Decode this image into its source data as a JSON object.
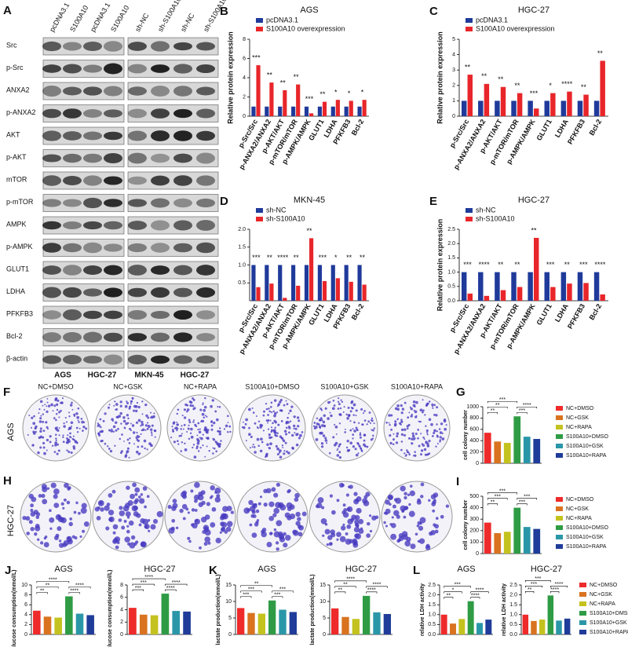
{
  "panel_a": {
    "panel": "A",
    "columns": [
      "pcDNA3.1",
      "S100A10",
      "pcDNA3.1",
      "S100A10",
      "sh-NC",
      "sh-S100A10",
      "sh-NC",
      "sh-S100A10"
    ],
    "rows": [
      "Src",
      "p-Src",
      "ANXA2",
      "p-ANXA2",
      "AKT",
      "p-AKT",
      "mTOR",
      "p-mTOR",
      "AMPK",
      "p-AMPK",
      "GLUT1",
      "LDHA",
      "PFKFB3",
      "Bcl-2",
      "β-actin"
    ],
    "groups": [
      "AGS",
      "HGC-27",
      "MKN-45",
      "HGC-27"
    ]
  },
  "panels_fh": {
    "panels": [
      "F",
      "H"
    ],
    "columns": [
      "NC+DMSO",
      "NC+GSK",
      "NC+RAPA",
      "S100A10+DMSO",
      "S100A10+GSK",
      "S100A10+RAPA"
    ],
    "rows": [
      "AGS",
      "HGC-27"
    ]
  },
  "chart_data": [
    {
      "type": "bar",
      "panel": "B",
      "title": "AGS",
      "ylabel": "Relative protein expression",
      "categories": [
        "p-Src/Src",
        "p-ANXA2/ANXA2",
        "p-AKT/AKT",
        "p-mTOR/mTOR",
        "p-AMPK/AMPK",
        "GLUT1",
        "LDHA",
        "PFKFB3",
        "Bcl-2"
      ],
      "series": [
        {
          "name": "pcDNA3.1",
          "color": "#1f3a9a",
          "values": [
            1,
            1,
            1,
            1,
            1,
            1,
            1,
            1,
            1
          ]
        },
        {
          "name": "S100A10 overexpression",
          "color": "#e8262a",
          "values": [
            5.3,
            3.5,
            2.7,
            3.3,
            0.3,
            1.5,
            1.7,
            1.6,
            1.7
          ]
        }
      ],
      "ylim": [
        0,
        8
      ],
      "yticks": [
        0,
        2,
        4,
        6,
        8
      ],
      "annotations": [
        "***",
        "**",
        "**",
        "**",
        "***",
        "**",
        "*",
        "*",
        "*"
      ]
    },
    {
      "type": "bar",
      "panel": "C",
      "title": "HGC-27",
      "ylabel": "Relative protein expression",
      "categories": [
        "p-Src/Src",
        "p-ANXA2/ANXA2",
        "p-AKT/AKT",
        "p-mTOR/mTOR",
        "p-AMPK/AMPK",
        "GLUT1",
        "LDHA",
        "PFKFB3",
        "Bcl-2"
      ],
      "series": [
        {
          "name": "pcDNA3.1",
          "color": "#1f3a9a",
          "values": [
            1,
            1,
            1,
            1,
            1,
            1,
            1,
            1,
            1
          ]
        },
        {
          "name": "S100A10 overexpression",
          "color": "#e8262a",
          "values": [
            2.7,
            2.1,
            1.9,
            1.5,
            0.5,
            1.5,
            1.6,
            1.4,
            3.6
          ]
        }
      ],
      "ylim": [
        0,
        5
      ],
      "yticks": [
        0,
        1,
        2,
        3,
        4,
        5
      ],
      "annotations": [
        "**",
        "**",
        "**",
        "**",
        "***",
        "*",
        "****",
        "**",
        "**"
      ]
    },
    {
      "type": "bar",
      "panel": "D",
      "title": "MKN-45",
      "categories": [
        "p-Src/Src",
        "p-ANXA2/ANXA2",
        "p-AKT/AKT",
        "p-mTOR/mTOR",
        "p-AMPK/AMPK",
        "GLUT1",
        "LDHA",
        "PFKFB3",
        "Bcl-2"
      ],
      "series": [
        {
          "name": "sh-NC",
          "color": "#1f3a9a",
          "values": [
            1,
            1,
            1,
            1,
            1,
            1,
            1,
            1,
            1
          ]
        },
        {
          "name": "sh-S100A10",
          "color": "#e8262a",
          "values": [
            0.38,
            0.48,
            0.08,
            0.42,
            1.75,
            0.55,
            0.63,
            0.53,
            0.45
          ]
        }
      ],
      "ylim": [
        0,
        2
      ],
      "yticks": [
        0.5,
        {
          "value": 1,
          "label": "1.0"
        },
        1.5,
        {
          "value": 2,
          "label": "2.0"
        }
      ],
      "annotations": [
        "***",
        "**",
        "****",
        "**",
        "**",
        "***",
        "*",
        "**",
        "**"
      ]
    },
    {
      "type": "bar",
      "panel": "E",
      "title": "HGC-27",
      "ylabel": "Relative protein expression",
      "categories": [
        "p-Src/Src",
        "p-ANXA2/ANXA2",
        "p-AKT/AKT",
        "p-mTOR/mTOR",
        "p-AMPK/AMPK",
        "GLUT1",
        "LDHA",
        "PFKFB3",
        "Bcl-2"
      ],
      "series": [
        {
          "name": "sh-NC",
          "color": "#1f3a9a",
          "values": [
            1,
            1,
            1,
            1,
            1,
            1,
            1,
            1,
            1
          ]
        },
        {
          "name": "sh-S100A10",
          "color": "#e8262a",
          "values": [
            0.25,
            0.17,
            0.37,
            0.48,
            2.2,
            0.48,
            0.6,
            0.62,
            0.22
          ]
        }
      ],
      "ylim": [
        0,
        2.5
      ],
      "yticks": [
        {
          "value": 0,
          "label": "0.0"
        },
        0.5,
        {
          "value": 1,
          "label": "1.0"
        },
        1.5,
        {
          "value": 2,
          "label": "2.0"
        },
        2.5
      ],
      "annotations": [
        "***",
        "****",
        "**",
        "**",
        "**",
        "***",
        "**",
        "***",
        "****"
      ]
    },
    {
      "type": "bar",
      "panel": "G",
      "ylabel": "cell colony number",
      "legend": true,
      "categories": [
        "NC+DMSO",
        "NC+GSK",
        "NC+RAPA",
        "S100A10+DMSO",
        "S100A10+GSK",
        "S100A10+RAPA"
      ],
      "colors": [
        "#ee2a2a",
        "#d9731f",
        "#c4c21e",
        "#2f9c45",
        "#2a97a8",
        "#1f3c9a"
      ],
      "values": [
        540,
        385,
        360,
        830,
        470,
        430
      ],
      "ylim": [
        0,
        1000
      ],
      "yticks": [
        0,
        200,
        400,
        600,
        800,
        1000
      ],
      "annotations": [
        "**",
        "**",
        "***",
        "***",
        "****"
      ]
    },
    {
      "type": "bar",
      "panel": "I",
      "ylabel": "cell colony number",
      "legend": true,
      "categories": [
        "NC+DMSO",
        "NC+GSK",
        "NC+RAPA",
        "S100A10+DMSO",
        "S100A10+GSK",
        "S100A10+RAPA"
      ],
      "colors": [
        "#ee2a2a",
        "#d9731f",
        "#c4c21e",
        "#2f9c45",
        "#2a97a8",
        "#1f3c9a"
      ],
      "values": [
        270,
        178,
        190,
        400,
        232,
        215
      ],
      "ylim": [
        0,
        500
      ],
      "yticks": [
        0,
        100,
        200,
        300,
        400,
        500
      ],
      "annotations": [
        "**",
        "***",
        "***",
        "***",
        "***"
      ]
    },
    {
      "type": "bar",
      "panel": "J",
      "title": "AGS",
      "ylabel": "glucose consumption(mmol/L)",
      "categories": [
        "NC+DMSO",
        "NC+GSK",
        "NC+RAPA",
        "S100A10+DMSO",
        "S100A10+GSK",
        "S100A10+RAPA"
      ],
      "colors": [
        "#ee2a2a",
        "#d9731f",
        "#c4c21e",
        "#2f9c45",
        "#2a97a8",
        "#1f3c9a"
      ],
      "values": [
        4.8,
        3.6,
        3.4,
        7.7,
        4.2,
        3.9
      ],
      "ylim": [
        0,
        10
      ],
      "yticks": [
        0,
        2,
        4,
        6,
        8,
        10
      ],
      "annotations": [
        "**",
        "**",
        "****",
        "****",
        "****"
      ]
    },
    {
      "type": "bar",
      "title": "HGC-27",
      "ylabel": "glucose consumption(mmol/L)",
      "categories": [
        "NC+DMSO",
        "NC+GSK",
        "NC+RAPA",
        "S100A10+DMSO",
        "S100A10+GSK",
        "S100A10+RAPA"
      ],
      "colors": [
        "#ee2a2a",
        "#d9731f",
        "#c4c21e",
        "#2f9c45",
        "#2a97a8",
        "#1f3c9a"
      ],
      "values": [
        4.3,
        3.2,
        3.1,
        6.6,
        3.8,
        3.7
      ],
      "ylim": [
        0,
        8
      ],
      "yticks": [
        0,
        2,
        4,
        6,
        8
      ],
      "annotations": [
        "***",
        "***",
        "****",
        "****",
        "****"
      ]
    },
    {
      "type": "bar",
      "panel": "K",
      "title": "AGS",
      "ylabel": "lactate production(mmol/L)",
      "categories": [
        "NC+DMSO",
        "NC+GSK",
        "NC+RAPA",
        "S100A10+DMSO",
        "S100A10+GSK",
        "S100A10+RAPA"
      ],
      "colors": [
        "#ee2a2a",
        "#d9731f",
        "#c4c21e",
        "#2f9c45",
        "#2a97a8",
        "#1f3c9a"
      ],
      "values": [
        8.0,
        6.5,
        6.3,
        10.3,
        7.5,
        6.8
      ],
      "ylim": [
        0,
        15
      ],
      "yticks": [
        0,
        5,
        10,
        15
      ],
      "annotations": [
        "***",
        "***",
        "**",
        "***",
        "***"
      ]
    },
    {
      "type": "bar",
      "title": "HGC-27",
      "ylabel": "lactate production(mmol/L)",
      "categories": [
        "NC+DMSO",
        "NC+GSK",
        "NC+RAPA",
        "S100A10+DMSO",
        "S100A10+GSK",
        "S100A10+RAPA"
      ],
      "colors": [
        "#ee2a2a",
        "#d9731f",
        "#c4c21e",
        "#2f9c45",
        "#2a97a8",
        "#1f3c9a"
      ],
      "values": [
        7.9,
        5.3,
        4.7,
        11.7,
        6.7,
        6.2
      ],
      "ylim": [
        0,
        15
      ],
      "yticks": [
        0,
        5,
        10,
        15
      ],
      "annotations": [
        "**",
        "**",
        "****",
        "****",
        "****"
      ]
    },
    {
      "type": "bar",
      "panel": "L",
      "title": "AGS",
      "ylabel": "relative LDH activity",
      "categories": [
        "NC+DMSO",
        "NC+GSK",
        "NC+RAPA",
        "S100A10+DMSO",
        "S100A10+GSK",
        "S100A10+RAPA"
      ],
      "colors": [
        "#ee2a2a",
        "#d9731f",
        "#c4c21e",
        "#2f9c45",
        "#2a97a8",
        "#1f3c9a"
      ],
      "values": [
        1.0,
        0.55,
        0.78,
        1.68,
        0.58,
        0.75
      ],
      "ylim": [
        0,
        2.5
      ],
      "yticks": [
        {
          "value": 0,
          "label": "0.0"
        },
        0.5,
        {
          "value": 1,
          "label": "1.0"
        },
        1.5,
        {
          "value": 2,
          "label": "2.0"
        },
        2.5
      ],
      "annotations": [
        "**",
        "*",
        "***",
        "****",
        "****"
      ]
    },
    {
      "type": "bar",
      "title": "HGC-27",
      "ylabel": "relative LDH activity",
      "legend": true,
      "categories": [
        "NC+DMSO",
        "NC+GSK",
        "NC+RAPA",
        "S100A10+DMSO",
        "S100A10+GSK",
        "S100A10+RAPA"
      ],
      "colors": [
        "#ee2a2a",
        "#d9731f",
        "#c4c21e",
        "#2f9c45",
        "#2a97a8",
        "#1f3c9a"
      ],
      "values": [
        1.0,
        0.68,
        0.75,
        1.97,
        0.7,
        0.8
      ],
      "ylim": [
        0,
        2.5
      ],
      "yticks": [
        {
          "value": 0,
          "label": "0.0"
        },
        0.5,
        {
          "value": 1,
          "label": "1.0"
        },
        1.5,
        {
          "value": 2,
          "label": "2.0"
        },
        2.5
      ],
      "annotations": [
        "**",
        "***",
        "***",
        "****",
        "****"
      ]
    }
  ]
}
